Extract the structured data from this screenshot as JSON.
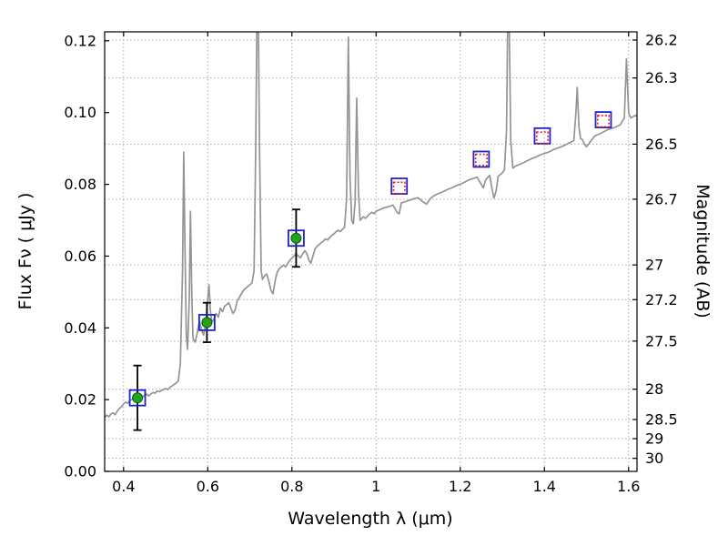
{
  "chart_data": {
    "type": "line",
    "title": "",
    "xlabel": "Wavelength λ (μm)",
    "ylabel_left": "Flux Fν ( μJy )",
    "ylabel_right": "Magnitude (AB)",
    "xlim": [
      0.355,
      1.62
    ],
    "ylim_flux": [
      0,
      0.1225
    ],
    "x_ticks": {
      "values": [
        0.4,
        0.6,
        0.8,
        1.0,
        1.2,
        1.4,
        1.6
      ],
      "labels": [
        "0.4",
        "0.6",
        "0.8",
        "1",
        "1.2",
        "1.4",
        "1.6"
      ]
    },
    "y_ticks_left": {
      "values": [
        0,
        0.02,
        0.04,
        0.06,
        0.08,
        0.1,
        0.12
      ],
      "labels": [
        "0.00",
        "0.02",
        "0.04",
        "0.06",
        "0.08",
        "0.10",
        "0.12"
      ]
    },
    "y_ticks_right": {
      "magnitudes": [
        26.2,
        26.3,
        26.5,
        26.7,
        27,
        27.2,
        27.5,
        28,
        28.5,
        29,
        30
      ],
      "labels": [
        "26.2",
        "26.3",
        "26.5",
        "26.7",
        "27",
        "27.2",
        "27.5",
        "28",
        "28.5",
        "29",
        "30"
      ]
    },
    "magnitude_flux_relation": "flux_uJy = 10^((23.9 - mag_AB)/2.5)",
    "mag_zeropoint": 23.9,
    "grid": {
      "style": "dotted",
      "vertical_at": "x_ticks",
      "horizontal_at": "y_ticks_right",
      "color": "#ababab"
    },
    "legend": "none",
    "colors": {
      "spectrum": "#949494",
      "observed_marker": "#21a321",
      "observed_marker_edge": "#0c5f0c",
      "errorbar": "#000000",
      "square_marker": "#2222cc",
      "model_marker": "#dd2222",
      "axes": "#000000",
      "background": "#ffffff"
    },
    "series": [
      {
        "name": "model_spectrum",
        "style": "solid-line",
        "points": [
          [
            0.355,
            0.015
          ],
          [
            0.36,
            0.0157
          ],
          [
            0.365,
            0.0152
          ],
          [
            0.37,
            0.016
          ],
          [
            0.375,
            0.0163
          ],
          [
            0.38,
            0.0158
          ],
          [
            0.385,
            0.0168
          ],
          [
            0.39,
            0.0175
          ],
          [
            0.395,
            0.018
          ],
          [
            0.4,
            0.0188
          ],
          [
            0.405,
            0.0193
          ],
          [
            0.41,
            0.019
          ],
          [
            0.415,
            0.0198
          ],
          [
            0.42,
            0.02
          ],
          [
            0.425,
            0.0205
          ],
          [
            0.43,
            0.0202
          ],
          [
            0.435,
            0.0208
          ],
          [
            0.44,
            0.021
          ],
          [
            0.445,
            0.0206
          ],
          [
            0.45,
            0.0213
          ],
          [
            0.455,
            0.0215
          ],
          [
            0.46,
            0.021
          ],
          [
            0.465,
            0.0216
          ],
          [
            0.47,
            0.022
          ],
          [
            0.475,
            0.0218
          ],
          [
            0.48,
            0.0224
          ],
          [
            0.485,
            0.0222
          ],
          [
            0.49,
            0.0226
          ],
          [
            0.495,
            0.0228
          ],
          [
            0.5,
            0.0231
          ],
          [
            0.505,
            0.0228
          ],
          [
            0.51,
            0.0234
          ],
          [
            0.515,
            0.0238
          ],
          [
            0.52,
            0.0242
          ],
          [
            0.525,
            0.0246
          ],
          [
            0.53,
            0.0252
          ],
          [
            0.535,
            0.03
          ],
          [
            0.54,
            0.056
          ],
          [
            0.543,
            0.089
          ],
          [
            0.546,
            0.062
          ],
          [
            0.549,
            0.038
          ],
          [
            0.552,
            0.034
          ],
          [
            0.556,
            0.048
          ],
          [
            0.559,
            0.0725
          ],
          [
            0.562,
            0.05
          ],
          [
            0.565,
            0.037
          ],
          [
            0.57,
            0.036
          ],
          [
            0.575,
            0.0385
          ],
          [
            0.58,
            0.042
          ],
          [
            0.585,
            0.0395
          ],
          [
            0.59,
            0.038
          ],
          [
            0.595,
            0.041
          ],
          [
            0.6,
            0.048
          ],
          [
            0.603,
            0.052
          ],
          [
            0.606,
            0.045
          ],
          [
            0.61,
            0.0415
          ],
          [
            0.615,
            0.0425
          ],
          [
            0.62,
            0.044
          ],
          [
            0.625,
            0.043
          ],
          [
            0.63,
            0.0455
          ],
          [
            0.635,
            0.0445
          ],
          [
            0.64,
            0.046
          ],
          [
            0.645,
            0.0465
          ],
          [
            0.65,
            0.047
          ],
          [
            0.655,
            0.0455
          ],
          [
            0.66,
            0.044
          ],
          [
            0.665,
            0.045
          ],
          [
            0.67,
            0.0475
          ],
          [
            0.675,
            0.0485
          ],
          [
            0.68,
            0.0495
          ],
          [
            0.685,
            0.0505
          ],
          [
            0.69,
            0.051
          ],
          [
            0.695,
            0.0515
          ],
          [
            0.7,
            0.052
          ],
          [
            0.705,
            0.0525
          ],
          [
            0.71,
            0.056
          ],
          [
            0.714,
            0.09
          ],
          [
            0.717,
            0.128
          ],
          [
            0.72,
            0.128
          ],
          [
            0.723,
            0.09
          ],
          [
            0.727,
            0.056
          ],
          [
            0.73,
            0.0535
          ],
          [
            0.735,
            0.0545
          ],
          [
            0.74,
            0.055
          ],
          [
            0.745,
            0.053
          ],
          [
            0.75,
            0.0505
          ],
          [
            0.755,
            0.0495
          ],
          [
            0.76,
            0.053
          ],
          [
            0.765,
            0.0555
          ],
          [
            0.77,
            0.0565
          ],
          [
            0.775,
            0.057
          ],
          [
            0.78,
            0.0575
          ],
          [
            0.785,
            0.057
          ],
          [
            0.79,
            0.058
          ],
          [
            0.795,
            0.0588
          ],
          [
            0.8,
            0.0595
          ],
          [
            0.805,
            0.06
          ],
          [
            0.81,
            0.0608
          ],
          [
            0.815,
            0.06
          ],
          [
            0.82,
            0.0595
          ],
          [
            0.825,
            0.0605
          ],
          [
            0.83,
            0.0615
          ],
          [
            0.835,
            0.0608
          ],
          [
            0.84,
            0.059
          ],
          [
            0.845,
            0.058
          ],
          [
            0.85,
            0.06
          ],
          [
            0.855,
            0.062
          ],
          [
            0.86,
            0.0628
          ],
          [
            0.865,
            0.0632
          ],
          [
            0.87,
            0.0638
          ],
          [
            0.875,
            0.0642
          ],
          [
            0.88,
            0.0648
          ],
          [
            0.885,
            0.0645
          ],
          [
            0.89,
            0.0652
          ],
          [
            0.895,
            0.0658
          ],
          [
            0.9,
            0.0662
          ],
          [
            0.905,
            0.0668
          ],
          [
            0.91,
            0.0672
          ],
          [
            0.915,
            0.0668
          ],
          [
            0.92,
            0.0675
          ],
          [
            0.925,
            0.068
          ],
          [
            0.93,
            0.076
          ],
          [
            0.934,
            0.121
          ],
          [
            0.938,
            0.082
          ],
          [
            0.942,
            0.07
          ],
          [
            0.946,
            0.069
          ],
          [
            0.95,
            0.075
          ],
          [
            0.954,
            0.104
          ],
          [
            0.958,
            0.078
          ],
          [
            0.962,
            0.07
          ],
          [
            0.966,
            0.0705
          ],
          [
            0.97,
            0.071
          ],
          [
            0.975,
            0.0705
          ],
          [
            0.98,
            0.0712
          ],
          [
            0.985,
            0.0718
          ],
          [
            0.99,
            0.0722
          ],
          [
            0.995,
            0.0718
          ],
          [
            1.0,
            0.0725
          ],
          [
            1.01,
            0.073
          ],
          [
            1.02,
            0.0735
          ],
          [
            1.03,
            0.0738
          ],
          [
            1.04,
            0.0742
          ],
          [
            1.05,
            0.0722
          ],
          [
            1.055,
            0.0718
          ],
          [
            1.06,
            0.0748
          ],
          [
            1.07,
            0.0752
          ],
          [
            1.08,
            0.0756
          ],
          [
            1.09,
            0.076
          ],
          [
            1.1,
            0.0763
          ],
          [
            1.11,
            0.0752
          ],
          [
            1.12,
            0.0745
          ],
          [
            1.13,
            0.0762
          ],
          [
            1.14,
            0.077
          ],
          [
            1.15,
            0.0775
          ],
          [
            1.16,
            0.078
          ],
          [
            1.17,
            0.0786
          ],
          [
            1.18,
            0.079
          ],
          [
            1.19,
            0.0796
          ],
          [
            1.2,
            0.08
          ],
          [
            1.21,
            0.0806
          ],
          [
            1.22,
            0.0812
          ],
          [
            1.23,
            0.0816
          ],
          [
            1.24,
            0.082
          ],
          [
            1.25,
            0.08
          ],
          [
            1.255,
            0.079
          ],
          [
            1.26,
            0.0812
          ],
          [
            1.27,
            0.0825
          ],
          [
            1.275,
            0.079
          ],
          [
            1.28,
            0.0762
          ],
          [
            1.285,
            0.078
          ],
          [
            1.29,
            0.0822
          ],
          [
            1.3,
            0.0832
          ],
          [
            1.305,
            0.084
          ],
          [
            1.31,
            0.095
          ],
          [
            1.313,
            0.128
          ],
          [
            1.316,
            0.128
          ],
          [
            1.32,
            0.092
          ],
          [
            1.325,
            0.0845
          ],
          [
            1.33,
            0.085
          ],
          [
            1.34,
            0.0855
          ],
          [
            1.35,
            0.086
          ],
          [
            1.36,
            0.0866
          ],
          [
            1.37,
            0.0872
          ],
          [
            1.38,
            0.0876
          ],
          [
            1.39,
            0.0882
          ],
          [
            1.4,
            0.0886
          ],
          [
            1.41,
            0.089
          ],
          [
            1.42,
            0.0896
          ],
          [
            1.43,
            0.09
          ],
          [
            1.44,
            0.0905
          ],
          [
            1.45,
            0.091
          ],
          [
            1.46,
            0.0916
          ],
          [
            1.47,
            0.0922
          ],
          [
            1.475,
            0.1
          ],
          [
            1.478,
            0.107
          ],
          [
            1.482,
            0.096
          ],
          [
            1.486,
            0.0928
          ],
          [
            1.49,
            0.0925
          ],
          [
            1.495,
            0.0912
          ],
          [
            1.5,
            0.0905
          ],
          [
            1.51,
            0.092
          ],
          [
            1.52,
            0.0935
          ],
          [
            1.53,
            0.094
          ],
          [
            1.54,
            0.0946
          ],
          [
            1.55,
            0.0952
          ],
          [
            1.56,
            0.0956
          ],
          [
            1.57,
            0.096
          ],
          [
            1.58,
            0.0966
          ],
          [
            1.59,
            0.0985
          ],
          [
            1.595,
            0.115
          ],
          [
            1.6,
            0.1
          ],
          [
            1.605,
            0.0985
          ],
          [
            1.61,
            0.0988
          ],
          [
            1.615,
            0.0992
          ],
          [
            1.62,
            0.099
          ]
        ]
      },
      {
        "name": "observed_photometry_with_errors",
        "style": "filled-circle-with-errorbar",
        "points": [
          {
            "x": 0.433,
            "y": 0.0205,
            "yerr": 0.009
          },
          {
            "x": 0.598,
            "y": 0.0415,
            "yerr": 0.0055
          },
          {
            "x": 0.81,
            "y": 0.065,
            "yerr": 0.008
          }
        ]
      },
      {
        "name": "photometry_squares",
        "style": "open-square",
        "points": [
          {
            "x": 0.433,
            "y": 0.0205
          },
          {
            "x": 0.598,
            "y": 0.0415
          },
          {
            "x": 0.81,
            "y": 0.065
          },
          {
            "x": 1.055,
            "y": 0.0795
          },
          {
            "x": 1.25,
            "y": 0.087
          },
          {
            "x": 1.395,
            "y": 0.0935
          },
          {
            "x": 1.54,
            "y": 0.098
          }
        ]
      },
      {
        "name": "model_photometry_squares",
        "style": "dotted-open-square",
        "points": [
          {
            "x": 1.055,
            "y": 0.079
          },
          {
            "x": 1.25,
            "y": 0.0868
          },
          {
            "x": 1.395,
            "y": 0.093
          },
          {
            "x": 1.54,
            "y": 0.0976
          }
        ]
      }
    ]
  }
}
